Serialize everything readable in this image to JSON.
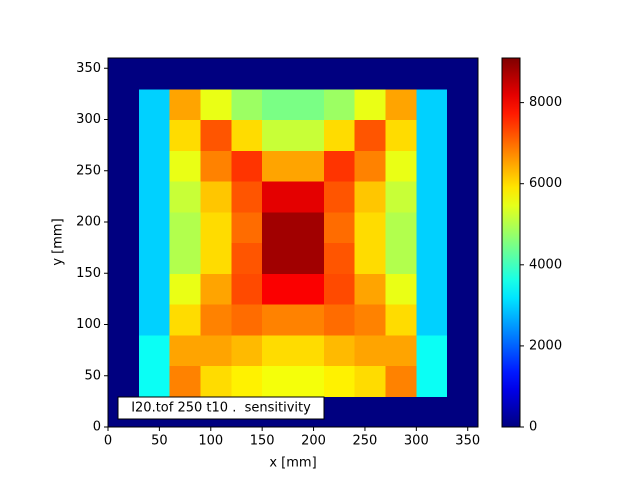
{
  "chart_data": {
    "type": "heatmap",
    "xlabel": "x [mm]",
    "ylabel": "y [mm]",
    "annotation": "I20.tof 250 t10 .  sensitivity",
    "xlim": [
      0,
      360
    ],
    "ylim": [
      0,
      360
    ],
    "xticks": [
      0,
      50,
      100,
      150,
      200,
      250,
      300,
      350
    ],
    "yticks": [
      0,
      50,
      100,
      150,
      200,
      250,
      300,
      350
    ],
    "xbins": [
      0,
      30,
      60,
      90,
      120,
      150,
      180,
      210,
      240,
      270,
      300,
      330,
      360
    ],
    "ybins": [
      0,
      30,
      60,
      90,
      120,
      150,
      180,
      210,
      240,
      270,
      300,
      330,
      360
    ],
    "colormap": "jet",
    "clim": [
      0,
      9100
    ],
    "colorbar_ticks": [
      0,
      2000,
      4000,
      6000,
      8000
    ],
    "z": [
      [
        0,
        0,
        0,
        0,
        0,
        0,
        0,
        0,
        0,
        0,
        0,
        0
      ],
      [
        0,
        3500,
        6800,
        6000,
        5800,
        5600,
        5600,
        5800,
        6000,
        6800,
        3500,
        0
      ],
      [
        0,
        3500,
        6500,
        6500,
        6300,
        6000,
        6000,
        6300,
        6500,
        6500,
        3500,
        0
      ],
      [
        0,
        3000,
        6000,
        6800,
        7000,
        6800,
        6800,
        7000,
        6800,
        6000,
        3000,
        0
      ],
      [
        0,
        3000,
        5500,
        6500,
        7300,
        8000,
        8000,
        7300,
        6500,
        5500,
        3000,
        0
      ],
      [
        0,
        3000,
        5000,
        6000,
        7200,
        8800,
        8800,
        7200,
        6000,
        5000,
        3000,
        0
      ],
      [
        0,
        3000,
        5000,
        6000,
        7000,
        8800,
        8800,
        7000,
        6000,
        5000,
        3000,
        0
      ],
      [
        0,
        3000,
        5200,
        6200,
        7200,
        8200,
        8200,
        7200,
        6200,
        5200,
        3000,
        0
      ],
      [
        0,
        3000,
        5500,
        6800,
        7500,
        6500,
        6500,
        7500,
        6800,
        5500,
        3000,
        0
      ],
      [
        0,
        3000,
        6000,
        7200,
        6000,
        5200,
        5200,
        6000,
        7200,
        6000,
        3000,
        0
      ],
      [
        0,
        3000,
        6500,
        5500,
        4800,
        4500,
        4500,
        4800,
        5500,
        6500,
        3000,
        0
      ],
      [
        0,
        0,
        0,
        0,
        0,
        0,
        0,
        0,
        0,
        0,
        0,
        0
      ]
    ]
  }
}
